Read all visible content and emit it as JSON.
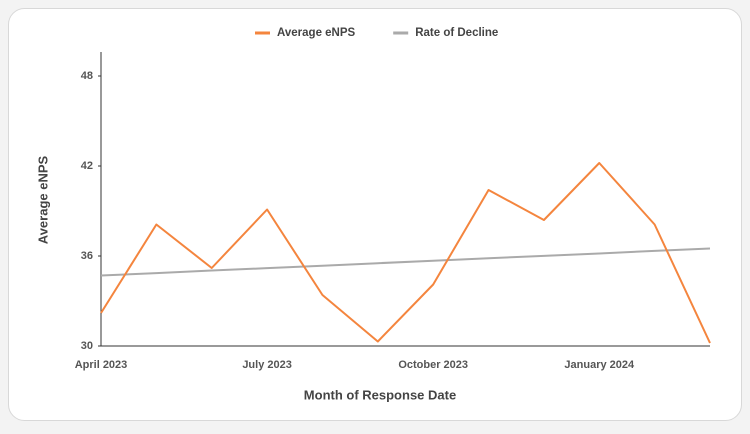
{
  "chart_data": {
    "type": "line",
    "xlabel": "Month of Response Date",
    "ylabel": "Average eNPS",
    "categories": [
      "April 2023",
      null,
      null,
      "July 2023",
      null,
      null,
      "October 2023",
      null,
      null,
      "January 2024",
      null,
      null
    ],
    "series": [
      {
        "name": "Average eNPS",
        "color": "#f4853e",
        "values": [
          32.2,
          38.1,
          35.2,
          39.1,
          33.4,
          30.3,
          34.1,
          40.4,
          38.4,
          42.2,
          38.1,
          30.2
        ]
      },
      {
        "name": "Rate of Decline",
        "color": "#aaaaaa",
        "values": [
          34.7,
          34.86,
          35.03,
          35.19,
          35.35,
          35.52,
          35.68,
          35.85,
          36.01,
          36.17,
          36.34,
          36.5
        ]
      }
    ],
    "ylim": [
      30,
      49.6
    ],
    "yticks": [
      30,
      36,
      42,
      48
    ],
    "grid": false,
    "legend": "top"
  }
}
